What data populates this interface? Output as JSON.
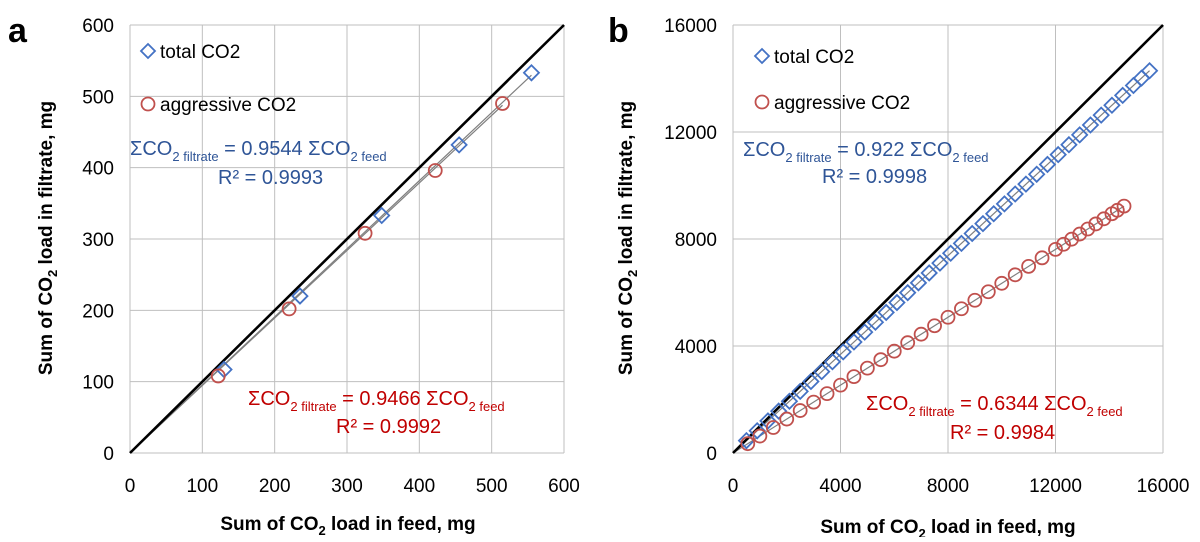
{
  "panels": [
    {
      "label": "a",
      "xlabel": [
        "Sum of CO",
        "2",
        " load in feed, mg"
      ],
      "ylabel": [
        "Sum of CO",
        "2",
        " load in filtrate, mg"
      ],
      "legend": {
        "total": "total CO2",
        "aggressive": "aggressive CO2"
      },
      "eq_total": {
        "sigma": "ΣCO",
        "s1": "2",
        "sub1": " filtrate",
        "mid": " = 0.9544 ΣCO",
        "s2": "2",
        "sub2": " feed",
        "r2": "R² = 0.9993"
      },
      "eq_aggr": {
        "sigma": "ΣCO",
        "s1": "2",
        "sub1": " filtrate",
        "mid": " = 0.9466 ΣCO",
        "s2": "2",
        "sub2": " feed",
        "r2": "R² = 0.9992"
      }
    },
    {
      "label": "b",
      "xlabel": [
        "Sum of CO",
        "2",
        " load in feed, mg"
      ],
      "ylabel": [
        "Sum of CO",
        "2",
        " load in filtrate, mg"
      ],
      "legend": {
        "total": "total CO2",
        "aggressive": "aggressive CO2"
      },
      "eq_total": {
        "sigma": "ΣCO",
        "s1": "2",
        "sub1": " filtrate",
        "mid": " = 0.922 ΣCO",
        "s2": "2",
        "sub2": " feed",
        "r2": "R² = 0.9998"
      },
      "eq_aggr": {
        "sigma": "ΣCO",
        "s1": "2",
        "sub1": " filtrate",
        "mid": " = 0.6344 ΣCO",
        "s2": "2",
        "sub2": " feed",
        "r2": "R² = 0.9984"
      }
    }
  ],
  "colors": {
    "total": "#4472c4",
    "aggressive": "#c0504d",
    "eq_total": "#2f5597",
    "eq_aggr": "#c00000",
    "grid": "#bfbfbf",
    "identity": "#000000",
    "fit": "#7f7f7f"
  },
  "chart_data": [
    {
      "type": "scatter",
      "xlim": [
        0,
        600
      ],
      "ylim": [
        0,
        600
      ],
      "xticks": [
        0,
        100,
        200,
        300,
        400,
        500,
        600
      ],
      "yticks": [
        0,
        100,
        200,
        300,
        400,
        500,
        600
      ],
      "grid": true,
      "legend_position": "top-left",
      "identity_line": true,
      "series": [
        {
          "name": "total CO2",
          "marker": "diamond",
          "slope": 0.9544,
          "x": [
            130,
            235,
            348,
            455,
            555
          ],
          "y": [
            117,
            220,
            333,
            432,
            533
          ]
        },
        {
          "name": "aggressive CO2",
          "marker": "circle",
          "slope": 0.9466,
          "x": [
            122,
            220,
            325,
            422,
            515
          ],
          "y": [
            108,
            202,
            308,
            396,
            490
          ]
        }
      ]
    },
    {
      "type": "scatter",
      "xlim": [
        0,
        16000
      ],
      "ylim": [
        0,
        16000
      ],
      "xticks": [
        0,
        4000,
        8000,
        12000,
        16000
      ],
      "yticks": [
        0,
        4000,
        8000,
        12000,
        16000
      ],
      "grid": true,
      "legend_position": "top-left",
      "identity_line": true,
      "series": [
        {
          "name": "total CO2",
          "marker": "diamond",
          "slope": 0.922,
          "x": [
            500,
            900,
            1300,
            1700,
            2100,
            2500,
            2900,
            3300,
            3700,
            4100,
            4500,
            4900,
            5300,
            5700,
            6100,
            6500,
            6900,
            7300,
            7700,
            8100,
            8500,
            8900,
            9300,
            9700,
            10100,
            10500,
            10900,
            11300,
            11700,
            12100,
            12500,
            12900,
            13300,
            13700,
            14100,
            14500,
            14900,
            15200,
            15500
          ],
          "y": [
            461,
            830,
            1199,
            1567,
            1936,
            2305,
            2674,
            3043,
            3411,
            3780,
            4149,
            4518,
            4887,
            5255,
            5624,
            5993,
            6362,
            6731,
            7099,
            7468,
            7837,
            8206,
            8575,
            8943,
            9312,
            9681,
            10050,
            10419,
            10787,
            11156,
            11525,
            11894,
            12263,
            12631,
            13000,
            13369,
            13738,
            14014,
            14291
          ]
        },
        {
          "name": "aggressive CO2",
          "marker": "circle",
          "slope": 0.6344,
          "x": [
            550,
            1000,
            1500,
            2000,
            2500,
            3000,
            3500,
            4000,
            4500,
            5000,
            5500,
            6000,
            6500,
            7000,
            7500,
            8000,
            8500,
            9000,
            9500,
            10000,
            10500,
            11000,
            11500,
            12000,
            12300,
            12600,
            12900,
            13200,
            13500,
            13800,
            14100,
            14300,
            14550
          ],
          "y": [
            349,
            634,
            952,
            1269,
            1586,
            1903,
            2220,
            2538,
            2855,
            3172,
            3489,
            3806,
            4124,
            4441,
            4758,
            5075,
            5392,
            5710,
            6027,
            6344,
            6661,
            6978,
            7296,
            7613,
            7803,
            7993,
            8184,
            8374,
            8564,
            8755,
            8945,
            9072,
            9230
          ]
        }
      ]
    }
  ]
}
